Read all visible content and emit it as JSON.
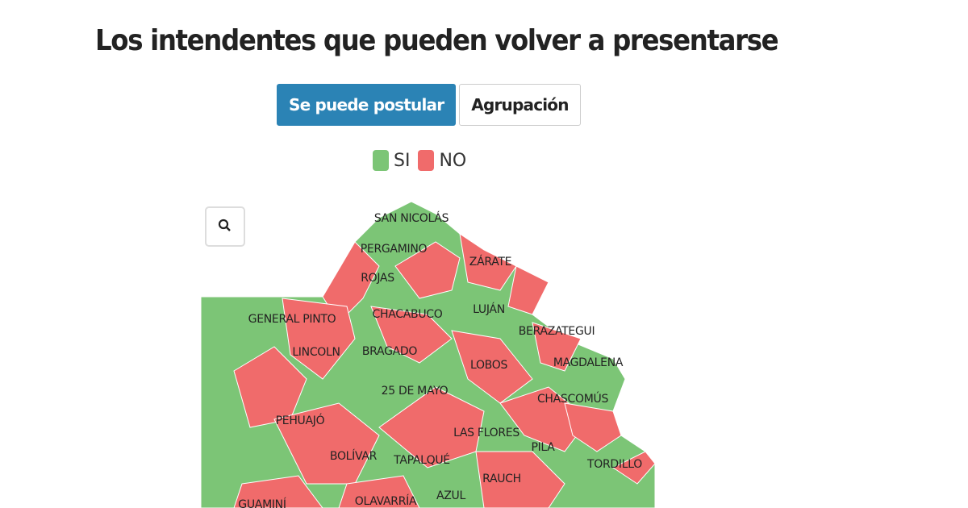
{
  "header": {
    "title": "Los intendentes que pueden volver a presentarse"
  },
  "toggle": {
    "buttons": [
      {
        "label": "Se puede postular",
        "active": true
      },
      {
        "label": "Agrupación",
        "active": false
      }
    ]
  },
  "legend": {
    "items": [
      {
        "label": "SI",
        "color": "#7cc576"
      },
      {
        "label": "NO",
        "color": "#f06b6b"
      }
    ]
  },
  "map": {
    "labels": [
      "SAN NICOLÁS",
      "PERGAMINO",
      "ZÁRATE",
      "ROJAS",
      "GENERAL PINTO",
      "CHACABUCO",
      "LUJÁN",
      "BERAZATEGUI",
      "LINCOLN",
      "BRAGADO",
      "LOBOS",
      "MAGDALENA",
      "25 DE MAYO",
      "CHASCOMÚS",
      "PEHUAJÓ",
      "LAS FLORES",
      "PILA",
      "BOLÍVAR",
      "TAPALQUÉ",
      "TORDILLO",
      "RAUCH",
      "GUAMINÍ",
      "OLAVARRÍA",
      "AZUL"
    ]
  }
}
